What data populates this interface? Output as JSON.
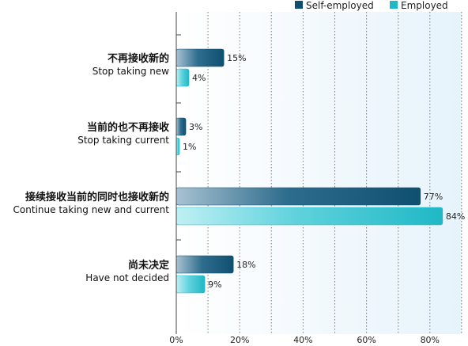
{
  "chart_data": {
    "type": "bar",
    "orientation": "horizontal",
    "categories": [
      {
        "zh": "不再接收新的",
        "en": "Stop taking new"
      },
      {
        "zh": "当前的也不再接收",
        "en": "Stop taking current"
      },
      {
        "zh": "接续接收当前的同时也接收新的",
        "en": "Continue taking new and current"
      },
      {
        "zh": "尚未决定",
        "en": "Have not decided"
      }
    ],
    "series": [
      {
        "name": "Self-employed",
        "color": "#0f4f6f",
        "values": [
          15,
          3,
          77,
          18
        ],
        "labels": [
          "15%",
          "3%",
          "77%",
          "18%"
        ]
      },
      {
        "name": "Employed",
        "color": "#1fb8c6",
        "values": [
          4,
          1,
          84,
          9
        ],
        "labels": [
          "4%",
          "1%",
          "84%",
          "9%"
        ]
      }
    ],
    "xlim": [
      0,
      90
    ],
    "xticks": [
      0,
      20,
      40,
      60,
      80
    ],
    "xtick_labels": [
      "0%",
      "20%",
      "40%",
      "60%",
      "80%"
    ],
    "grid": "vertical-dotted",
    "legend": "top-right"
  }
}
